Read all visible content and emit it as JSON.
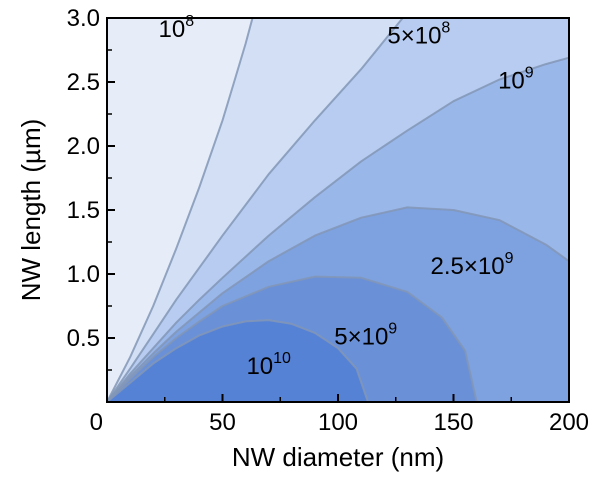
{
  "chart_data": {
    "type": "contour",
    "xlabel": "NW diameter (nm)",
    "ylabel": "NW length (µm)",
    "xlim": [
      0,
      200
    ],
    "ylim": [
      0,
      3.0
    ],
    "xticks": [
      "0",
      "50",
      "100",
      "150",
      "200"
    ],
    "yticks": [
      "0.5",
      "1.0",
      "1.5",
      "2.0",
      "2.5",
      "3.0"
    ],
    "grid": false,
    "legend": "none",
    "levels": [
      {
        "label": "10",
        "exponent": "8",
        "boundary": [
          [
            0,
            0
          ],
          [
            10,
            0.35
          ],
          [
            20,
            0.75
          ],
          [
            30,
            1.2
          ],
          [
            40,
            1.68
          ],
          [
            50,
            2.2
          ],
          [
            55,
            2.5
          ],
          [
            60,
            2.8
          ],
          [
            63,
            3.0
          ]
        ],
        "label_at": [
          30,
          2.85
        ]
      },
      {
        "label": "5×10",
        "exponent": "8",
        "boundary": [
          [
            0,
            0
          ],
          [
            10,
            0.26
          ],
          [
            20,
            0.53
          ],
          [
            30,
            0.8
          ],
          [
            40,
            1.05
          ],
          [
            50,
            1.3
          ],
          [
            70,
            1.78
          ],
          [
            90,
            2.2
          ],
          [
            110,
            2.6
          ],
          [
            128,
            3.0
          ]
        ],
        "label_at": [
          135,
          2.8
        ]
      },
      {
        "label": "10",
        "exponent": "9",
        "boundary": [
          [
            0,
            0
          ],
          [
            10,
            0.22
          ],
          [
            20,
            0.42
          ],
          [
            30,
            0.62
          ],
          [
            40,
            0.8
          ],
          [
            50,
            0.97
          ],
          [
            70,
            1.3
          ],
          [
            90,
            1.6
          ],
          [
            110,
            1.88
          ],
          [
            130,
            2.12
          ],
          [
            150,
            2.35
          ],
          [
            170,
            2.52
          ],
          [
            190,
            2.64
          ],
          [
            200,
            2.69
          ]
        ],
        "label_at": [
          177,
          2.45
        ]
      },
      {
        "label": "2.5×10",
        "exponent": "9",
        "boundary": [
          [
            0,
            0
          ],
          [
            10,
            0.2
          ],
          [
            20,
            0.38
          ],
          [
            30,
            0.55
          ],
          [
            40,
            0.7
          ],
          [
            50,
            0.85
          ],
          [
            70,
            1.1
          ],
          [
            90,
            1.3
          ],
          [
            110,
            1.44
          ],
          [
            130,
            1.52
          ],
          [
            150,
            1.5
          ],
          [
            170,
            1.42
          ],
          [
            190,
            1.23
          ],
          [
            200,
            1.1
          ]
        ],
        "label_at": [
          158,
          1.0
        ]
      },
      {
        "label": "5×10",
        "exponent": "9",
        "boundary": [
          [
            0,
            0
          ],
          [
            10,
            0.18
          ],
          [
            20,
            0.35
          ],
          [
            30,
            0.5
          ],
          [
            40,
            0.63
          ],
          [
            50,
            0.75
          ],
          [
            70,
            0.9
          ],
          [
            90,
            0.98
          ],
          [
            110,
            0.97
          ],
          [
            130,
            0.86
          ],
          [
            145,
            0.66
          ],
          [
            155,
            0.4
          ],
          [
            160,
            0.0
          ]
        ],
        "label_at": [
          112,
          0.45
        ]
      },
      {
        "label": "10",
        "exponent": "10",
        "boundary": [
          [
            0,
            0
          ],
          [
            10,
            0.15
          ],
          [
            20,
            0.3
          ],
          [
            30,
            0.42
          ],
          [
            40,
            0.52
          ],
          [
            50,
            0.59
          ],
          [
            60,
            0.63
          ],
          [
            70,
            0.64
          ],
          [
            80,
            0.61
          ],
          [
            90,
            0.54
          ],
          [
            100,
            0.42
          ],
          [
            108,
            0.26
          ],
          [
            113,
            0.0
          ]
        ],
        "label_at": [
          70,
          0.22
        ]
      }
    ]
  },
  "colors": {
    "fills": [
      "#e6edf9",
      "#d2dff5",
      "#b7ccf0",
      "#9ab7ea",
      "#7ea1df",
      "#6a90d8",
      "#5682d6"
    ],
    "line": "#8296b6",
    "axis": "#000000"
  }
}
